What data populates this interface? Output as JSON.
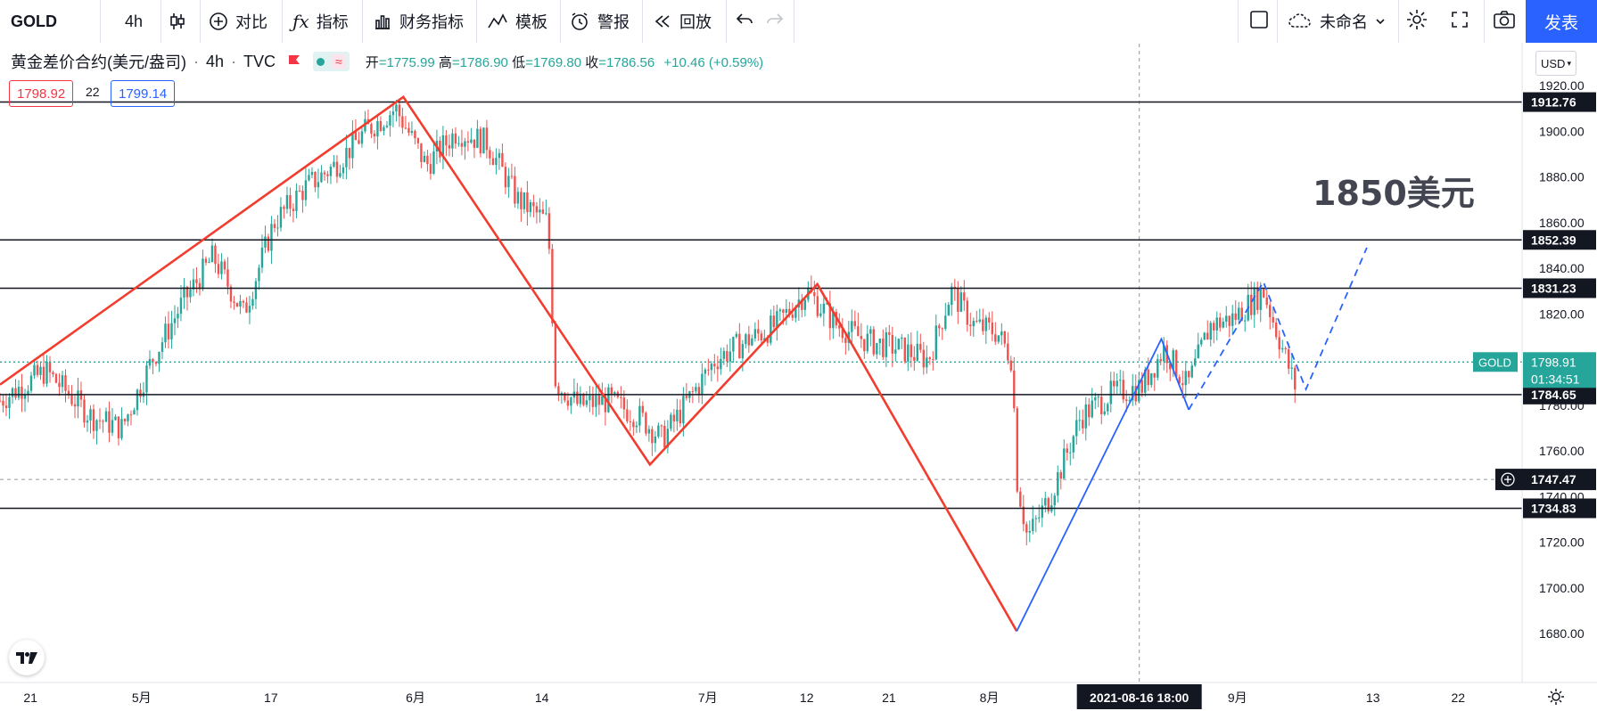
{
  "toolbar": {
    "symbol": "GOLD",
    "interval": "4h",
    "compare": "对比",
    "indicators": "指标",
    "financials": "财务指标",
    "templates": "模板",
    "alert": "警报",
    "replay": "回放",
    "layout_name": "未命名",
    "publish": "发表"
  },
  "legend": {
    "title": "黄金差价合约(美元/盎司)",
    "interval": "4h",
    "source": "TVC",
    "open_label": "开",
    "open": "=1775.99",
    "high_label": "高",
    "high": "=1786.90",
    "low_label": "低",
    "low": "=1769.80",
    "close_label": "收",
    "close": "=1786.56",
    "change": "+10.46 (+0.59%)",
    "bid": "1798.92",
    "spread": "22",
    "ask": "1799.14"
  },
  "currency": "USD",
  "annotation_text": "1850美元",
  "crosshair_time": "2021-08-16   18:00",
  "colors": {
    "up": "#26a69a",
    "down": "#ef5350",
    "pattern_red": "#f23d2e",
    "pattern_blue": "#2962ff",
    "accent": "#2962ff"
  },
  "chart_data": {
    "type": "candlestick",
    "symbol": "GOLD",
    "ylim": [
      1660,
      1940
    ],
    "y_ticks": [
      1660,
      1680,
      1700,
      1720,
      1740,
      1760,
      1780,
      1800,
      1820,
      1840,
      1860,
      1880,
      1900,
      1920,
      1940
    ],
    "x_tick_labels": [
      "21",
      "5月",
      "17",
      "6月",
      "14",
      "7月",
      "12",
      "21",
      "8月",
      "9月",
      "13",
      "22"
    ],
    "horizontal_levels": [
      1912.76,
      1852.39,
      1831.23,
      1784.65,
      1734.83
    ],
    "current_price": 1798.91,
    "current_price_label": "GOLD",
    "countdown": "01:34:51",
    "crosshair_price": 1747.47,
    "zigzag_red": [
      [
        0.0,
        1789
      ],
      [
        0.265,
        1915
      ],
      [
        0.427,
        1754
      ],
      [
        0.537,
        1833
      ],
      [
        0.668,
        1681
      ]
    ],
    "zigzag_blue": [
      [
        0.668,
        1681
      ],
      [
        0.763,
        1809
      ],
      [
        0.781,
        1778
      ],
      [
        0.83,
        1834
      ],
      [
        0.858,
        1787
      ]
    ],
    "projection_blue_dashed": [
      [
        0.781,
        1778
      ],
      [
        0.83,
        1834
      ],
      [
        0.858,
        1787
      ],
      [
        0.898,
        1849
      ]
    ],
    "candle_path": [
      [
        0.0,
        1782
      ],
      [
        0.03,
        1795
      ],
      [
        0.06,
        1775
      ],
      [
        0.08,
        1770
      ],
      [
        0.1,
        1800
      ],
      [
        0.12,
        1825
      ],
      [
        0.14,
        1845
      ],
      [
        0.16,
        1820
      ],
      [
        0.18,
        1860
      ],
      [
        0.2,
        1875
      ],
      [
        0.22,
        1885
      ],
      [
        0.24,
        1900
      ],
      [
        0.26,
        1910
      ],
      [
        0.28,
        1885
      ],
      [
        0.3,
        1900
      ],
      [
        0.32,
        1895
      ],
      [
        0.34,
        1870
      ],
      [
        0.36,
        1860
      ],
      [
        0.365,
        1790
      ],
      [
        0.38,
        1780
      ],
      [
        0.4,
        1782
      ],
      [
        0.42,
        1775
      ],
      [
        0.435,
        1765
      ],
      [
        0.45,
        1780
      ],
      [
        0.47,
        1800
      ],
      [
        0.49,
        1808
      ],
      [
        0.51,
        1815
      ],
      [
        0.53,
        1830
      ],
      [
        0.55,
        1815
      ],
      [
        0.57,
        1808
      ],
      [
        0.59,
        1805
      ],
      [
        0.61,
        1800
      ],
      [
        0.625,
        1830
      ],
      [
        0.64,
        1815
      ],
      [
        0.655,
        1812
      ],
      [
        0.665,
        1800
      ],
      [
        0.668,
        1748
      ],
      [
        0.675,
        1722
      ],
      [
        0.69,
        1740
      ],
      [
        0.71,
        1775
      ],
      [
        0.73,
        1785
      ],
      [
        0.75,
        1788
      ],
      [
        0.765,
        1805
      ],
      [
        0.78,
        1788
      ],
      [
        0.795,
        1815
      ],
      [
        0.81,
        1818
      ],
      [
        0.83,
        1830
      ],
      [
        0.845,
        1800
      ],
      [
        0.852,
        1786
      ]
    ]
  }
}
